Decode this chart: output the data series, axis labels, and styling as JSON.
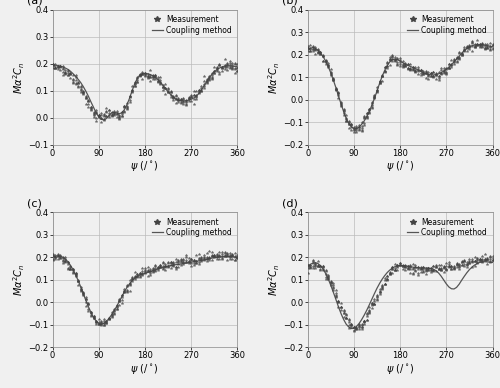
{
  "panels": [
    {
      "label": "(a)",
      "ylim": [
        -0.1,
        0.4
      ],
      "yticks": [
        -0.1,
        0.0,
        0.1,
        0.2,
        0.3,
        0.4
      ],
      "coupling_psi": [
        0,
        5,
        10,
        15,
        20,
        25,
        30,
        35,
        40,
        45,
        50,
        55,
        60,
        65,
        70,
        75,
        80,
        85,
        90,
        95,
        100,
        105,
        110,
        115,
        120,
        125,
        130,
        135,
        140,
        145,
        150,
        155,
        160,
        165,
        170,
        175,
        180,
        185,
        190,
        195,
        200,
        205,
        210,
        215,
        220,
        225,
        230,
        235,
        240,
        245,
        250,
        255,
        260,
        265,
        270,
        275,
        280,
        285,
        290,
        295,
        300,
        305,
        310,
        315,
        320,
        325,
        330,
        335,
        340,
        345,
        350,
        355,
        360
      ],
      "coupling_val": [
        0.19,
        0.192,
        0.193,
        0.191,
        0.188,
        0.184,
        0.179,
        0.172,
        0.163,
        0.153,
        0.142,
        0.13,
        0.115,
        0.098,
        0.079,
        0.058,
        0.038,
        0.018,
        0.003,
        -0.006,
        -0.008,
        -0.003,
        0.008,
        0.018,
        0.02,
        0.018,
        0.015,
        0.018,
        0.03,
        0.048,
        0.072,
        0.1,
        0.125,
        0.145,
        0.158,
        0.164,
        0.164,
        0.163,
        0.16,
        0.156,
        0.15,
        0.142,
        0.132,
        0.12,
        0.108,
        0.096,
        0.086,
        0.077,
        0.07,
        0.065,
        0.063,
        0.062,
        0.063,
        0.065,
        0.068,
        0.073,
        0.08,
        0.09,
        0.103,
        0.118,
        0.133,
        0.148,
        0.16,
        0.17,
        0.178,
        0.184,
        0.188,
        0.191,
        0.192,
        0.192,
        0.191,
        0.19,
        0.19
      ],
      "meas_psi_dense": true,
      "meas_base_val": [
        0.19,
        0.192,
        0.188,
        0.183,
        0.177,
        0.17,
        0.162,
        0.154,
        0.145,
        0.135,
        0.122,
        0.108,
        0.092,
        0.074,
        0.056,
        0.038,
        0.021,
        0.008,
        0.001,
        0.0,
        0.003,
        0.01,
        0.018,
        0.021,
        0.018,
        0.014,
        0.012,
        0.016,
        0.028,
        0.047,
        0.07,
        0.098,
        0.122,
        0.143,
        0.157,
        0.163,
        0.163,
        0.162,
        0.158,
        0.154,
        0.148,
        0.14,
        0.13,
        0.118,
        0.107,
        0.096,
        0.086,
        0.077,
        0.071,
        0.066,
        0.063,
        0.062,
        0.064,
        0.067,
        0.071,
        0.077,
        0.085,
        0.095,
        0.108,
        0.122,
        0.137,
        0.151,
        0.163,
        0.173,
        0.181,
        0.186,
        0.19,
        0.192,
        0.192,
        0.191,
        0.19,
        0.189,
        0.19
      ]
    },
    {
      "label": "(b)",
      "ylim": [
        -0.2,
        0.4
      ],
      "yticks": [
        -0.2,
        -0.1,
        0.0,
        0.1,
        0.2,
        0.3,
        0.4
      ],
      "coupling_psi": [
        0,
        5,
        10,
        15,
        20,
        25,
        30,
        35,
        40,
        45,
        50,
        55,
        60,
        65,
        70,
        75,
        80,
        85,
        90,
        95,
        100,
        105,
        110,
        115,
        120,
        125,
        130,
        135,
        140,
        145,
        150,
        155,
        160,
        165,
        170,
        175,
        180,
        185,
        190,
        195,
        200,
        205,
        210,
        215,
        220,
        225,
        230,
        235,
        240,
        245,
        250,
        255,
        260,
        265,
        270,
        275,
        280,
        285,
        290,
        295,
        300,
        305,
        310,
        315,
        320,
        325,
        330,
        335,
        340,
        345,
        350,
        355,
        360
      ],
      "coupling_val": [
        0.22,
        0.228,
        0.232,
        0.228,
        0.22,
        0.208,
        0.192,
        0.172,
        0.148,
        0.12,
        0.088,
        0.054,
        0.018,
        -0.018,
        -0.052,
        -0.082,
        -0.105,
        -0.12,
        -0.128,
        -0.128,
        -0.122,
        -0.11,
        -0.095,
        -0.075,
        -0.052,
        -0.025,
        0.005,
        0.038,
        0.072,
        0.103,
        0.13,
        0.152,
        0.168,
        0.178,
        0.18,
        0.178,
        0.172,
        0.165,
        0.158,
        0.152,
        0.148,
        0.143,
        0.138,
        0.132,
        0.126,
        0.12,
        0.115,
        0.112,
        0.11,
        0.11,
        0.112,
        0.115,
        0.12,
        0.127,
        0.135,
        0.145,
        0.155,
        0.168,
        0.18,
        0.193,
        0.207,
        0.218,
        0.228,
        0.235,
        0.24,
        0.243,
        0.244,
        0.244,
        0.243,
        0.242,
        0.24,
        0.238,
        0.235
      ],
      "meas_base_val": [
        0.22,
        0.228,
        0.23,
        0.226,
        0.218,
        0.206,
        0.19,
        0.17,
        0.146,
        0.118,
        0.086,
        0.052,
        0.016,
        -0.02,
        -0.054,
        -0.084,
        -0.108,
        -0.122,
        -0.13,
        -0.128,
        -0.12,
        -0.108,
        -0.092,
        -0.072,
        -0.05,
        -0.022,
        0.008,
        0.04,
        0.074,
        0.105,
        0.132,
        0.154,
        0.17,
        0.178,
        0.18,
        0.176,
        0.17,
        0.163,
        0.156,
        0.15,
        0.145,
        0.14,
        0.136,
        0.13,
        0.124,
        0.118,
        0.113,
        0.11,
        0.108,
        0.108,
        0.11,
        0.114,
        0.119,
        0.126,
        0.134,
        0.144,
        0.155,
        0.168,
        0.181,
        0.194,
        0.208,
        0.219,
        0.229,
        0.236,
        0.241,
        0.244,
        0.244,
        0.244,
        0.243,
        0.241,
        0.239,
        0.237,
        0.235
      ]
    },
    {
      "label": "(c)",
      "ylim": [
        -0.2,
        0.4
      ],
      "yticks": [
        -0.2,
        -0.1,
        0.0,
        0.1,
        0.2,
        0.3,
        0.4
      ],
      "coupling_psi": [
        0,
        5,
        10,
        15,
        20,
        25,
        30,
        35,
        40,
        45,
        50,
        55,
        60,
        65,
        70,
        75,
        80,
        85,
        90,
        95,
        100,
        105,
        110,
        115,
        120,
        125,
        130,
        135,
        140,
        145,
        150,
        155,
        160,
        165,
        170,
        175,
        180,
        185,
        190,
        195,
        200,
        205,
        210,
        215,
        220,
        225,
        230,
        235,
        240,
        245,
        250,
        255,
        260,
        265,
        270,
        275,
        280,
        285,
        290,
        295,
        300,
        305,
        310,
        315,
        320,
        325,
        330,
        335,
        340,
        345,
        350,
        355,
        360
      ],
      "coupling_val": [
        0.2,
        0.204,
        0.206,
        0.205,
        0.2,
        0.192,
        0.18,
        0.164,
        0.145,
        0.122,
        0.096,
        0.068,
        0.038,
        0.008,
        -0.02,
        -0.046,
        -0.068,
        -0.084,
        -0.094,
        -0.097,
        -0.094,
        -0.085,
        -0.072,
        -0.056,
        -0.038,
        -0.018,
        0.003,
        0.025,
        0.046,
        0.066,
        0.082,
        0.096,
        0.107,
        0.115,
        0.121,
        0.125,
        0.128,
        0.132,
        0.136,
        0.14,
        0.144,
        0.148,
        0.152,
        0.155,
        0.158,
        0.161,
        0.163,
        0.165,
        0.167,
        0.168,
        0.17,
        0.172,
        0.174,
        0.176,
        0.178,
        0.18,
        0.182,
        0.184,
        0.186,
        0.188,
        0.19,
        0.193,
        0.196,
        0.198,
        0.2,
        0.201,
        0.202,
        0.203,
        0.203,
        0.203,
        0.202,
        0.201,
        0.2
      ],
      "meas_base_val": [
        0.2,
        0.202,
        0.202,
        0.199,
        0.193,
        0.184,
        0.172,
        0.157,
        0.139,
        0.117,
        0.092,
        0.066,
        0.038,
        0.01,
        -0.017,
        -0.043,
        -0.066,
        -0.083,
        -0.093,
        -0.097,
        -0.094,
        -0.086,
        -0.073,
        -0.057,
        -0.04,
        -0.02,
        0.001,
        0.023,
        0.044,
        0.064,
        0.082,
        0.097,
        0.11,
        0.12,
        0.128,
        0.133,
        0.137,
        0.14,
        0.143,
        0.146,
        0.149,
        0.153,
        0.157,
        0.16,
        0.163,
        0.166,
        0.168,
        0.17,
        0.172,
        0.174,
        0.176,
        0.178,
        0.18,
        0.182,
        0.184,
        0.186,
        0.188,
        0.19,
        0.193,
        0.196,
        0.199,
        0.202,
        0.205,
        0.207,
        0.208,
        0.209,
        0.209,
        0.208,
        0.207,
        0.206,
        0.205,
        0.204,
        0.203
      ]
    },
    {
      "label": "(d)",
      "ylim": [
        -0.2,
        0.4
      ],
      "yticks": [
        -0.2,
        -0.1,
        0.0,
        0.1,
        0.2,
        0.3,
        0.4
      ],
      "coupling_psi": [
        0,
        5,
        10,
        15,
        20,
        25,
        30,
        35,
        40,
        45,
        50,
        55,
        60,
        65,
        70,
        75,
        80,
        85,
        90,
        95,
        100,
        105,
        110,
        115,
        120,
        125,
        130,
        135,
        140,
        145,
        150,
        155,
        160,
        165,
        170,
        175,
        180,
        185,
        190,
        195,
        200,
        205,
        210,
        215,
        220,
        225,
        230,
        235,
        240,
        245,
        250,
        255,
        260,
        265,
        270,
        275,
        280,
        285,
        290,
        295,
        300,
        305,
        310,
        315,
        320,
        325,
        330,
        335,
        340,
        345,
        350,
        355,
        360
      ],
      "coupling_val": [
        0.16,
        0.168,
        0.174,
        0.176,
        0.172,
        0.163,
        0.148,
        0.128,
        0.104,
        0.076,
        0.045,
        0.013,
        -0.02,
        -0.05,
        -0.076,
        -0.097,
        -0.11,
        -0.117,
        -0.116,
        -0.108,
        -0.095,
        -0.078,
        -0.058,
        -0.036,
        -0.012,
        0.013,
        0.038,
        0.062,
        0.083,
        0.102,
        0.118,
        0.132,
        0.143,
        0.152,
        0.158,
        0.162,
        0.163,
        0.163,
        0.162,
        0.16,
        0.158,
        0.156,
        0.154,
        0.153,
        0.152,
        0.152,
        0.152,
        0.152,
        0.15,
        0.147,
        0.14,
        0.13,
        0.116,
        0.099,
        0.082,
        0.068,
        0.06,
        0.059,
        0.066,
        0.08,
        0.098,
        0.115,
        0.131,
        0.145,
        0.156,
        0.165,
        0.172,
        0.177,
        0.179,
        0.18,
        0.179,
        0.178,
        0.177
      ],
      "meas_base_val": [
        0.158,
        0.165,
        0.169,
        0.168,
        0.163,
        0.154,
        0.142,
        0.127,
        0.108,
        0.086,
        0.062,
        0.036,
        0.009,
        -0.019,
        -0.046,
        -0.071,
        -0.092,
        -0.107,
        -0.114,
        -0.114,
        -0.108,
        -0.097,
        -0.082,
        -0.064,
        -0.044,
        -0.022,
        0.002,
        0.026,
        0.05,
        0.072,
        0.093,
        0.112,
        0.129,
        0.143,
        0.153,
        0.16,
        0.163,
        0.163,
        0.161,
        0.158,
        0.155,
        0.152,
        0.15,
        0.148,
        0.147,
        0.147,
        0.147,
        0.148,
        0.149,
        0.15,
        0.151,
        0.152,
        0.153,
        0.154,
        0.155,
        0.156,
        0.157,
        0.159,
        0.161,
        0.164,
        0.167,
        0.171,
        0.175,
        0.179,
        0.182,
        0.185,
        0.187,
        0.189,
        0.19,
        0.191,
        0.191,
        0.191,
        0.19
      ]
    }
  ],
  "xlabel": "$\\psi$ $(/^\\circ)$",
  "ylabel_text": "$M\\alpha^2C_n$",
  "xticks": [
    0,
    90,
    180,
    270,
    360
  ],
  "xlim": [
    0,
    360
  ],
  "legend_meas": "Measurement",
  "legend_coupling": "Coupling method",
  "line_color": "#555555",
  "meas_color": "#444444",
  "grid_color": "#bbbbbb",
  "background": "#f0f0f0",
  "noise_scale": 0.01,
  "n_repeats": 5
}
